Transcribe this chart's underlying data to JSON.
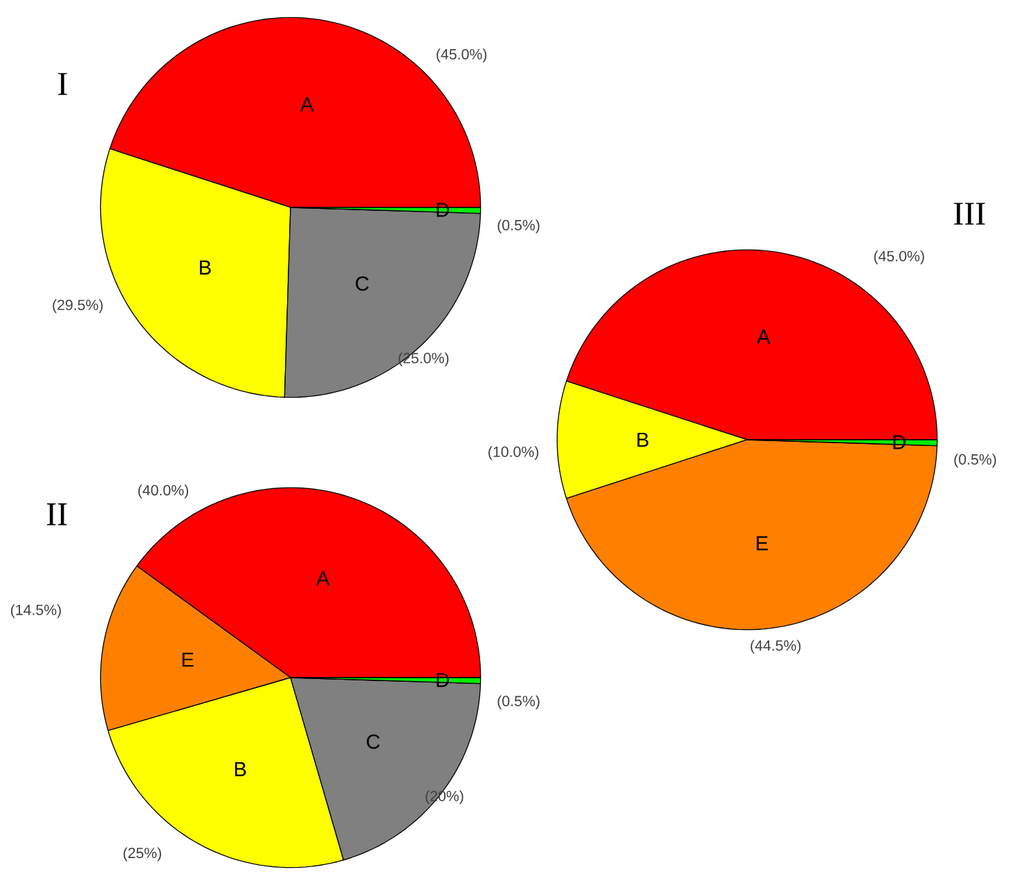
{
  "chart_data": [
    {
      "type": "pie",
      "title": "I",
      "categories": [
        "A",
        "B",
        "C",
        "D"
      ],
      "values": [
        45.0,
        29.5,
        25.0,
        0.5
      ],
      "colors": [
        "#ff0000",
        "#ffff00",
        "#808080",
        "#00ee00"
      ],
      "value_labels": [
        "(45.0%)",
        "(29.5%)",
        "(25.0%)",
        "(0.5%)"
      ]
    },
    {
      "type": "pie",
      "title": "II",
      "categories": [
        "A",
        "E",
        "B",
        "C",
        "D"
      ],
      "values": [
        40.0,
        14.5,
        25,
        20,
        0.5
      ],
      "colors": [
        "#ff0000",
        "#ff8000",
        "#ffff00",
        "#808080",
        "#00ee00"
      ],
      "value_labels": [
        "(40.0%)",
        "(14.5%)",
        "(25%)",
        "(20%)",
        "(0.5%)"
      ]
    },
    {
      "type": "pie",
      "title": "III",
      "categories": [
        "A",
        "B",
        "E",
        "D"
      ],
      "values": [
        45.0,
        10.0,
        44.5,
        0.5
      ],
      "colors": [
        "#ff0000",
        "#ffff00",
        "#ff8000",
        "#00ee00"
      ],
      "value_labels": [
        "(45.0%)",
        "(10.0%)",
        "(44.5%)",
        "(0.5%)"
      ]
    }
  ]
}
